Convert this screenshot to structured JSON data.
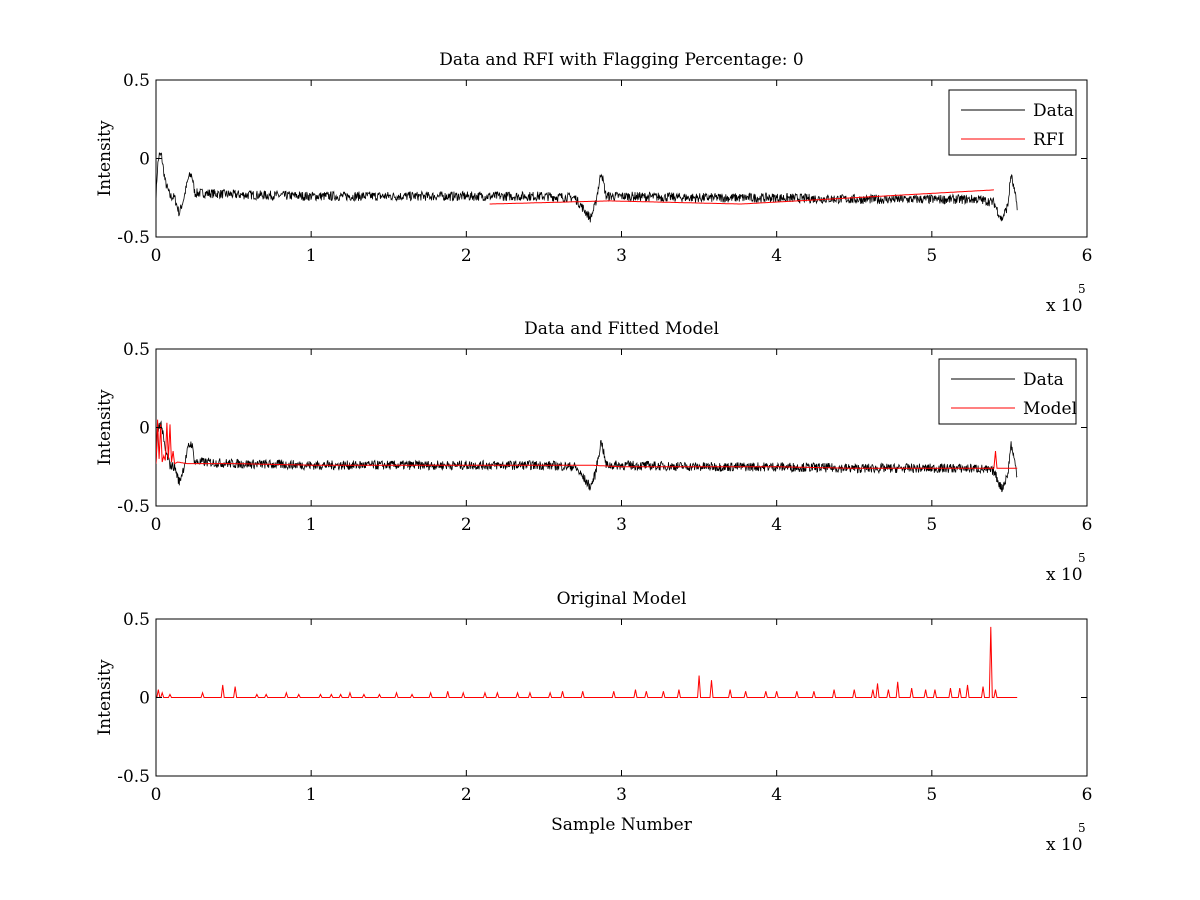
{
  "figure": {
    "background": "#ffffff"
  },
  "chart_data": [
    {
      "type": "line",
      "title": "Data and RFI with Flagging Percentage: 0",
      "xlabel": "",
      "ylabel": "Intensity",
      "xlim": [
        0,
        600000
      ],
      "ylim": [
        -0.5,
        0.5
      ],
      "xticks": [
        0,
        1,
        2,
        3,
        4,
        5,
        6
      ],
      "yticks": [
        "0.5",
        "0",
        "-0.5"
      ],
      "x_exponent_label": "x 10",
      "x_exponent": "5",
      "legend": {
        "placement": "top-right",
        "entries": [
          "Data",
          "RFI"
        ]
      },
      "grid": false,
      "series": [
        {
          "name": "Data",
          "color": "#000000",
          "noise_band": 0.03,
          "x": [
            0,
            1000,
            2000,
            3500,
            6000,
            9000,
            12000,
            15000,
            18000,
            21000,
            23000,
            25000,
            30000,
            50000,
            100000,
            150000,
            200000,
            250000,
            270000,
            280000,
            283000,
            287000,
            290000,
            300000,
            350000,
            400000,
            450000,
            500000,
            530000,
            540000,
            545000,
            549000,
            551000,
            553000,
            555000
          ],
          "y": [
            -0.25,
            -0.05,
            0.02,
            0.02,
            -0.15,
            -0.24,
            -0.25,
            -0.35,
            -0.25,
            -0.12,
            -0.1,
            -0.22,
            -0.22,
            -0.23,
            -0.24,
            -0.24,
            -0.24,
            -0.24,
            -0.25,
            -0.38,
            -0.3,
            -0.08,
            -0.24,
            -0.24,
            -0.25,
            -0.25,
            -0.26,
            -0.26,
            -0.26,
            -0.28,
            -0.39,
            -0.3,
            -0.1,
            -0.2,
            -0.3
          ]
        },
        {
          "name": "RFI",
          "color": "#ff0000",
          "x": [
            215000,
            292000,
            377000,
            540000
          ],
          "y": [
            -0.29,
            -0.27,
            -0.29,
            -0.2
          ]
        }
      ]
    },
    {
      "type": "line",
      "title": "Data and Fitted Model",
      "xlabel": "",
      "ylabel": "Intensity",
      "xlim": [
        0,
        600000
      ],
      "ylim": [
        -0.5,
        0.5
      ],
      "xticks": [
        0,
        1,
        2,
        3,
        4,
        5,
        6
      ],
      "yticks": [
        "0.5",
        "0",
        "-0.5"
      ],
      "x_exponent_label": "x 10",
      "x_exponent": "5",
      "legend": {
        "placement": "top-right",
        "entries": [
          "Data",
          "Model"
        ]
      },
      "grid": false,
      "series": [
        {
          "name": "Data",
          "color": "#000000",
          "noise_band": 0.03,
          "x": [
            0,
            1000,
            2000,
            3500,
            6000,
            9000,
            12000,
            15000,
            18000,
            21000,
            23000,
            25000,
            30000,
            50000,
            100000,
            150000,
            200000,
            250000,
            270000,
            280000,
            283000,
            287000,
            290000,
            300000,
            350000,
            400000,
            450000,
            500000,
            530000,
            540000,
            545000,
            549000,
            551000,
            553000,
            555000
          ],
          "y": [
            -0.25,
            -0.05,
            0.02,
            0.02,
            -0.15,
            -0.24,
            -0.25,
            -0.35,
            -0.25,
            -0.12,
            -0.1,
            -0.22,
            -0.22,
            -0.23,
            -0.24,
            -0.24,
            -0.24,
            -0.24,
            -0.25,
            -0.38,
            -0.3,
            -0.08,
            -0.24,
            -0.24,
            -0.25,
            -0.25,
            -0.26,
            -0.26,
            -0.26,
            -0.28,
            -0.39,
            -0.3,
            -0.1,
            -0.2,
            -0.3
          ]
        },
        {
          "name": "Model",
          "color": "#ff0000",
          "x": [
            0,
            1000,
            2000,
            3000,
            4000,
            5000,
            6000,
            7000,
            8000,
            9000,
            10000,
            11000,
            12000,
            14000,
            20000,
            50000,
            100000,
            150000,
            200000,
            250000,
            280000,
            300000,
            350000,
            400000,
            450000,
            500000,
            540000,
            541000,
            542000,
            555000
          ],
          "y": [
            -0.23,
            0.05,
            -0.2,
            0.02,
            -0.22,
            -0.18,
            -0.21,
            0.03,
            -0.2,
            0.02,
            -0.22,
            -0.15,
            -0.23,
            -0.22,
            -0.23,
            -0.23,
            -0.24,
            -0.24,
            -0.24,
            -0.24,
            -0.24,
            -0.25,
            -0.25,
            -0.25,
            -0.26,
            -0.26,
            -0.26,
            -0.15,
            -0.26,
            -0.26
          ]
        }
      ]
    },
    {
      "type": "line",
      "title": "Original Model",
      "xlabel": "Sample Number",
      "ylabel": "Intensity",
      "xlim": [
        0,
        600000
      ],
      "ylim": [
        -0.5,
        0.5
      ],
      "xticks": [
        0,
        1,
        2,
        3,
        4,
        5,
        6
      ],
      "yticks": [
        "0.5",
        "0",
        "-0.5"
      ],
      "x_exponent_label": "x 10",
      "x_exponent": "5",
      "legend": null,
      "grid": false,
      "series": [
        {
          "name": "Model",
          "color": "#ff0000",
          "baseline": 0,
          "x_end": 555000,
          "spikes_x": [
            1500,
            4000,
            9000,
            30000,
            43000,
            51000,
            65000,
            71000,
            84000,
            92000,
            106000,
            113000,
            119000,
            125000,
            134000,
            144000,
            155000,
            165000,
            177000,
            188000,
            198000,
            212000,
            220000,
            233000,
            241000,
            254000,
            262000,
            275000,
            295000,
            309000,
            316000,
            327000,
            337000,
            350000,
            358000,
            370000,
            380000,
            393000,
            400000,
            413000,
            424000,
            437000,
            450000,
            462000,
            465000,
            472000,
            478000,
            487000,
            496000,
            502000,
            512000,
            518000,
            523000,
            533000,
            538000,
            541000
          ],
          "spikes_y": [
            0.05,
            0.03,
            0.02,
            0.03,
            0.08,
            0.07,
            0.02,
            0.02,
            0.03,
            0.02,
            0.02,
            0.02,
            0.02,
            0.03,
            0.02,
            0.02,
            0.03,
            0.02,
            0.03,
            0.04,
            0.03,
            0.03,
            0.03,
            0.03,
            0.03,
            0.03,
            0.04,
            0.04,
            0.04,
            0.05,
            0.04,
            0.04,
            0.05,
            0.14,
            0.11,
            0.05,
            0.04,
            0.04,
            0.04,
            0.04,
            0.04,
            0.05,
            0.05,
            0.05,
            0.09,
            0.05,
            0.1,
            0.06,
            0.05,
            0.05,
            0.06,
            0.06,
            0.08,
            0.07,
            0.45,
            0.05
          ]
        }
      ]
    }
  ]
}
